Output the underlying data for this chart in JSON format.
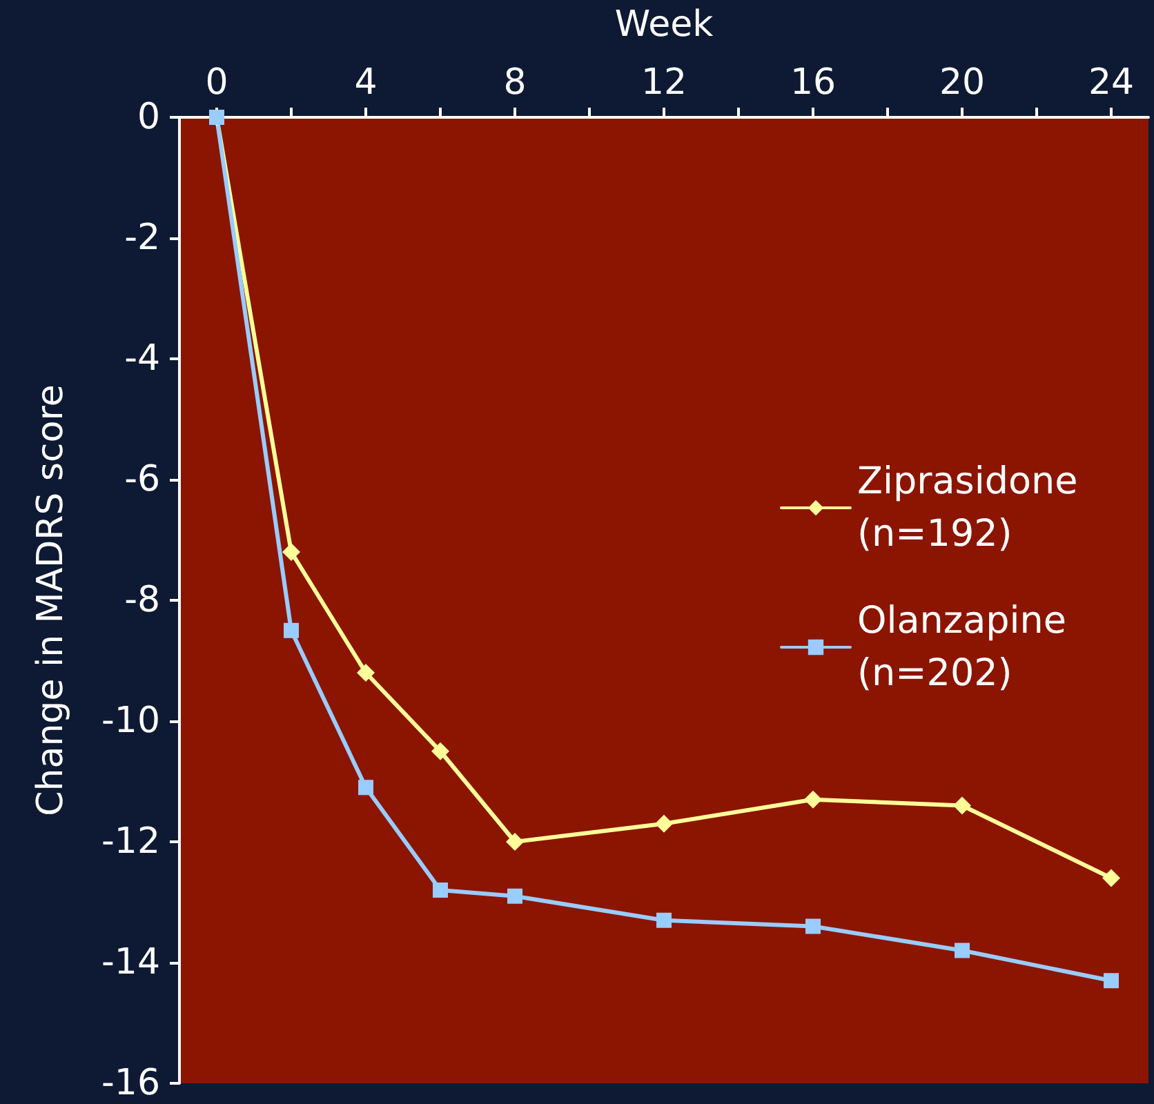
{
  "chart_data": {
    "type": "line",
    "xlabel": "Week",
    "ylabel": "Change in MADRS score",
    "x": [
      0,
      2,
      4,
      6,
      8,
      12,
      16,
      20,
      24
    ],
    "series": [
      {
        "name": "Ziprasidone (n=192)",
        "color": "#ffff99",
        "marker": "diamond",
        "values": [
          0,
          -7.2,
          -9.2,
          -10.5,
          -12.0,
          -11.7,
          -11.3,
          -11.4,
          -12.6
        ]
      },
      {
        "name": "Olanzapine (n=202)",
        "color": "#99ccff",
        "marker": "square",
        "values": [
          0,
          -8.5,
          -11.1,
          -12.8,
          -12.9,
          -13.3,
          -13.4,
          -13.8,
          -14.3
        ]
      }
    ],
    "xlim": [
      -1,
      25
    ],
    "xticks": [
      0,
      {
        "value": 2,
        "label": null
      },
      4,
      {
        "value": 6,
        "label": null
      },
      8,
      {
        "value": 10,
        "label": null
      },
      12,
      {
        "value": 14,
        "label": null
      },
      16,
      {
        "value": 18,
        "label": null
      },
      20,
      {
        "value": 22,
        "label": null
      },
      24
    ],
    "ylim": [
      -16,
      0
    ],
    "yticks": [
      -16,
      -14,
      -12,
      -10,
      -8,
      -6,
      -4,
      -2,
      0
    ],
    "grid": false,
    "legend": "right",
    "line_style": "solid"
  }
}
